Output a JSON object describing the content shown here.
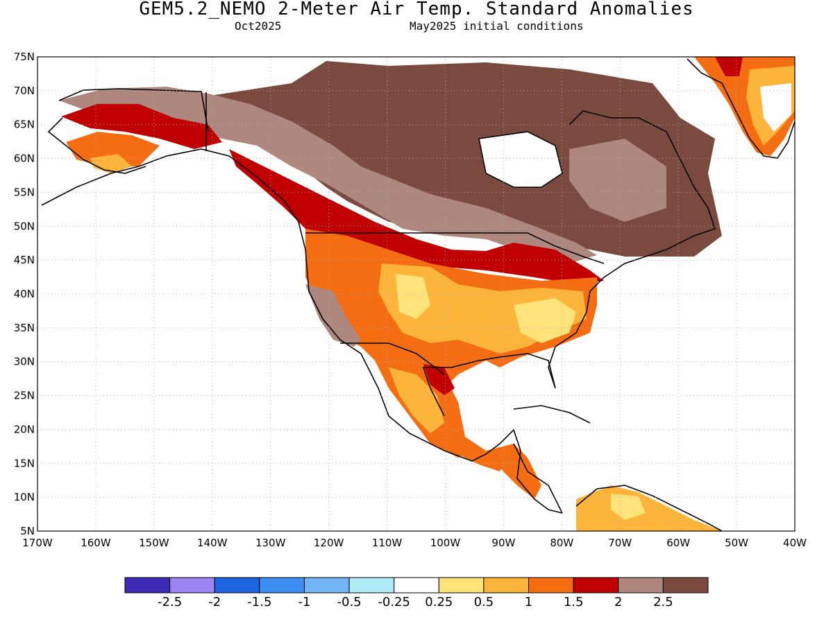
{
  "header": {
    "title": "GEM5.2_NEMO 2-Meter Air Temp. Standard Anomalies",
    "valid_month": "Oct2025",
    "init": "May2025 initial conditions"
  },
  "map": {
    "lon_range": [
      -170,
      -40
    ],
    "lat_range": [
      5,
      75
    ],
    "lat_ticks": [
      "75N",
      "70N",
      "65N",
      "60N",
      "55N",
      "50N",
      "45N",
      "40N",
      "35N",
      "30N",
      "25N",
      "20N",
      "15N",
      "10N",
      "5N"
    ],
    "lon_ticks": [
      "170W",
      "160W",
      "150W",
      "140W",
      "130W",
      "120W",
      "110W",
      "100W",
      "90W",
      "80W",
      "70W",
      "60W",
      "50W",
      "40W"
    ]
  },
  "colorbar": {
    "colors": [
      "#3e2bb5",
      "#9d84f5",
      "#1e63e0",
      "#3c8ef0",
      "#72b6f5",
      "#b0ecf7",
      "#ffffff",
      "#fde37a",
      "#fdb43a",
      "#f56d12",
      "#c00000",
      "#ae877e",
      "#7a4a3e"
    ],
    "labels": [
      "-2.5",
      "-2",
      "-1.5",
      "-1",
      "-0.5",
      "-0.25",
      "0.25",
      "0.5",
      "1",
      "1.5",
      "2",
      "2.5"
    ]
  }
}
